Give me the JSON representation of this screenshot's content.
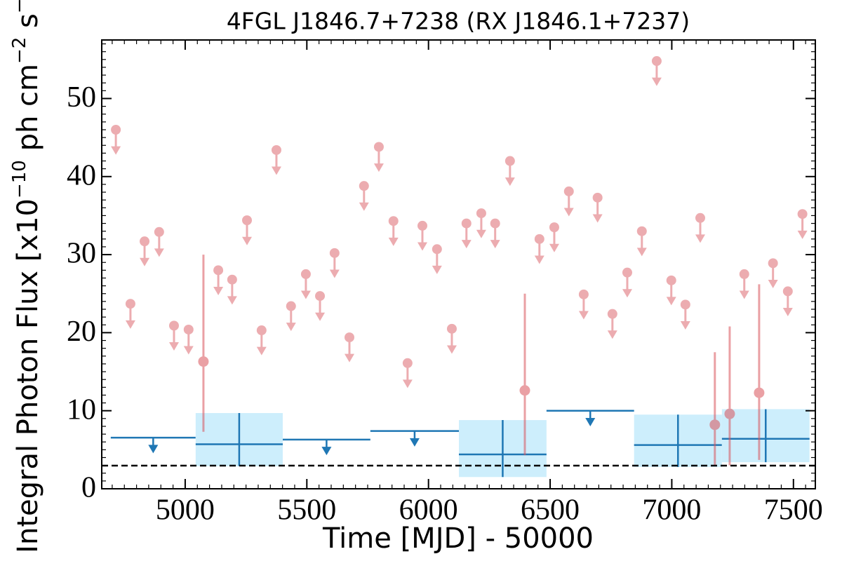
{
  "chart_data": {
    "type": "scatter",
    "title": "4FGL J1846.7+7238 (RX J1846.1+7237)",
    "xlabel": "Time [MJD] - 50000",
    "ylabel": [
      "Integral Photon Flux [x10",
      "−10",
      " ph cm",
      "−2",
      " s",
      "−1",
      "]"
    ],
    "xlim": [
      4657,
      7590
    ],
    "ylim": [
      0,
      57.5
    ],
    "xticks": [
      5000,
      5500,
      6000,
      6500,
      7000,
      7500
    ],
    "yticks": [
      0,
      10,
      20,
      30,
      40,
      50
    ],
    "xminor_step": 50,
    "yminor_step": 1,
    "series": [
      {
        "marker": "upper_limit",
        "color": "#e0767c",
        "alpha": 0.6,
        "x": [
          4715,
          4775,
          4833,
          4893,
          4954,
          5014,
          5136,
          5193,
          5254,
          5314,
          5375,
          5435,
          5496,
          5554,
          5614,
          5675,
          5735,
          5796,
          5856,
          5914,
          5975,
          6035,
          6096,
          6156,
          6217,
          6274,
          6335,
          6456,
          6517,
          6577,
          6638,
          6695,
          6756,
          6817,
          6877,
          6938,
          6998,
          7056,
          7117,
          7298,
          7416,
          7477,
          7537
        ],
        "values": [
          46.0,
          23.7,
          31.7,
          32.9,
          20.9,
          20.4,
          28.0,
          26.8,
          34.4,
          20.3,
          43.4,
          23.4,
          27.5,
          24.7,
          30.2,
          19.4,
          38.8,
          43.8,
          34.3,
          16.1,
          33.7,
          30.7,
          20.5,
          34.0,
          35.3,
          34.0,
          42.0,
          32.0,
          33.5,
          38.1,
          24.9,
          37.3,
          22.4,
          27.7,
          33.0,
          54.8,
          26.7,
          23.6,
          34.7,
          27.5,
          28.9,
          25.3,
          35.2
        ]
      },
      {
        "marker": "point",
        "color": "#d9535b",
        "alpha": 0.55,
        "x": [
          5075,
          6396,
          7177,
          7238,
          7359
        ],
        "values": [
          16.3,
          12.6,
          8.2,
          9.6,
          12.3
        ],
        "lower": [
          7.3,
          4.3,
          2.9,
          3.0,
          3.7
        ],
        "upper": [
          30.0,
          25.0,
          17.5,
          20.8,
          26.2
        ]
      },
      {
        "marker": "upper_limit_bin",
        "color": "#1f77b4",
        "x_start": [
          4694,
          5401,
          5761,
          6485
        ],
        "x_end": [
          5043,
          5761,
          6125,
          6845
        ],
        "values": [
          6.55,
          6.3,
          7.4,
          10.0
        ]
      },
      {
        "marker": "bin",
        "color": "#1f77b4",
        "fill": "#cdeefc",
        "x_start": [
          5043,
          6125,
          6845,
          7206
        ],
        "x_end": [
          5401,
          6485,
          7206,
          7566
        ],
        "values": [
          5.7,
          4.4,
          5.6,
          6.4
        ],
        "lower": [
          2.9,
          1.5,
          2.8,
          3.4
        ],
        "upper": [
          9.7,
          8.8,
          9.5,
          10.2
        ]
      }
    ],
    "hlines": [
      {
        "value": 2.96,
        "color": "#000000",
        "dashed": true
      }
    ]
  }
}
